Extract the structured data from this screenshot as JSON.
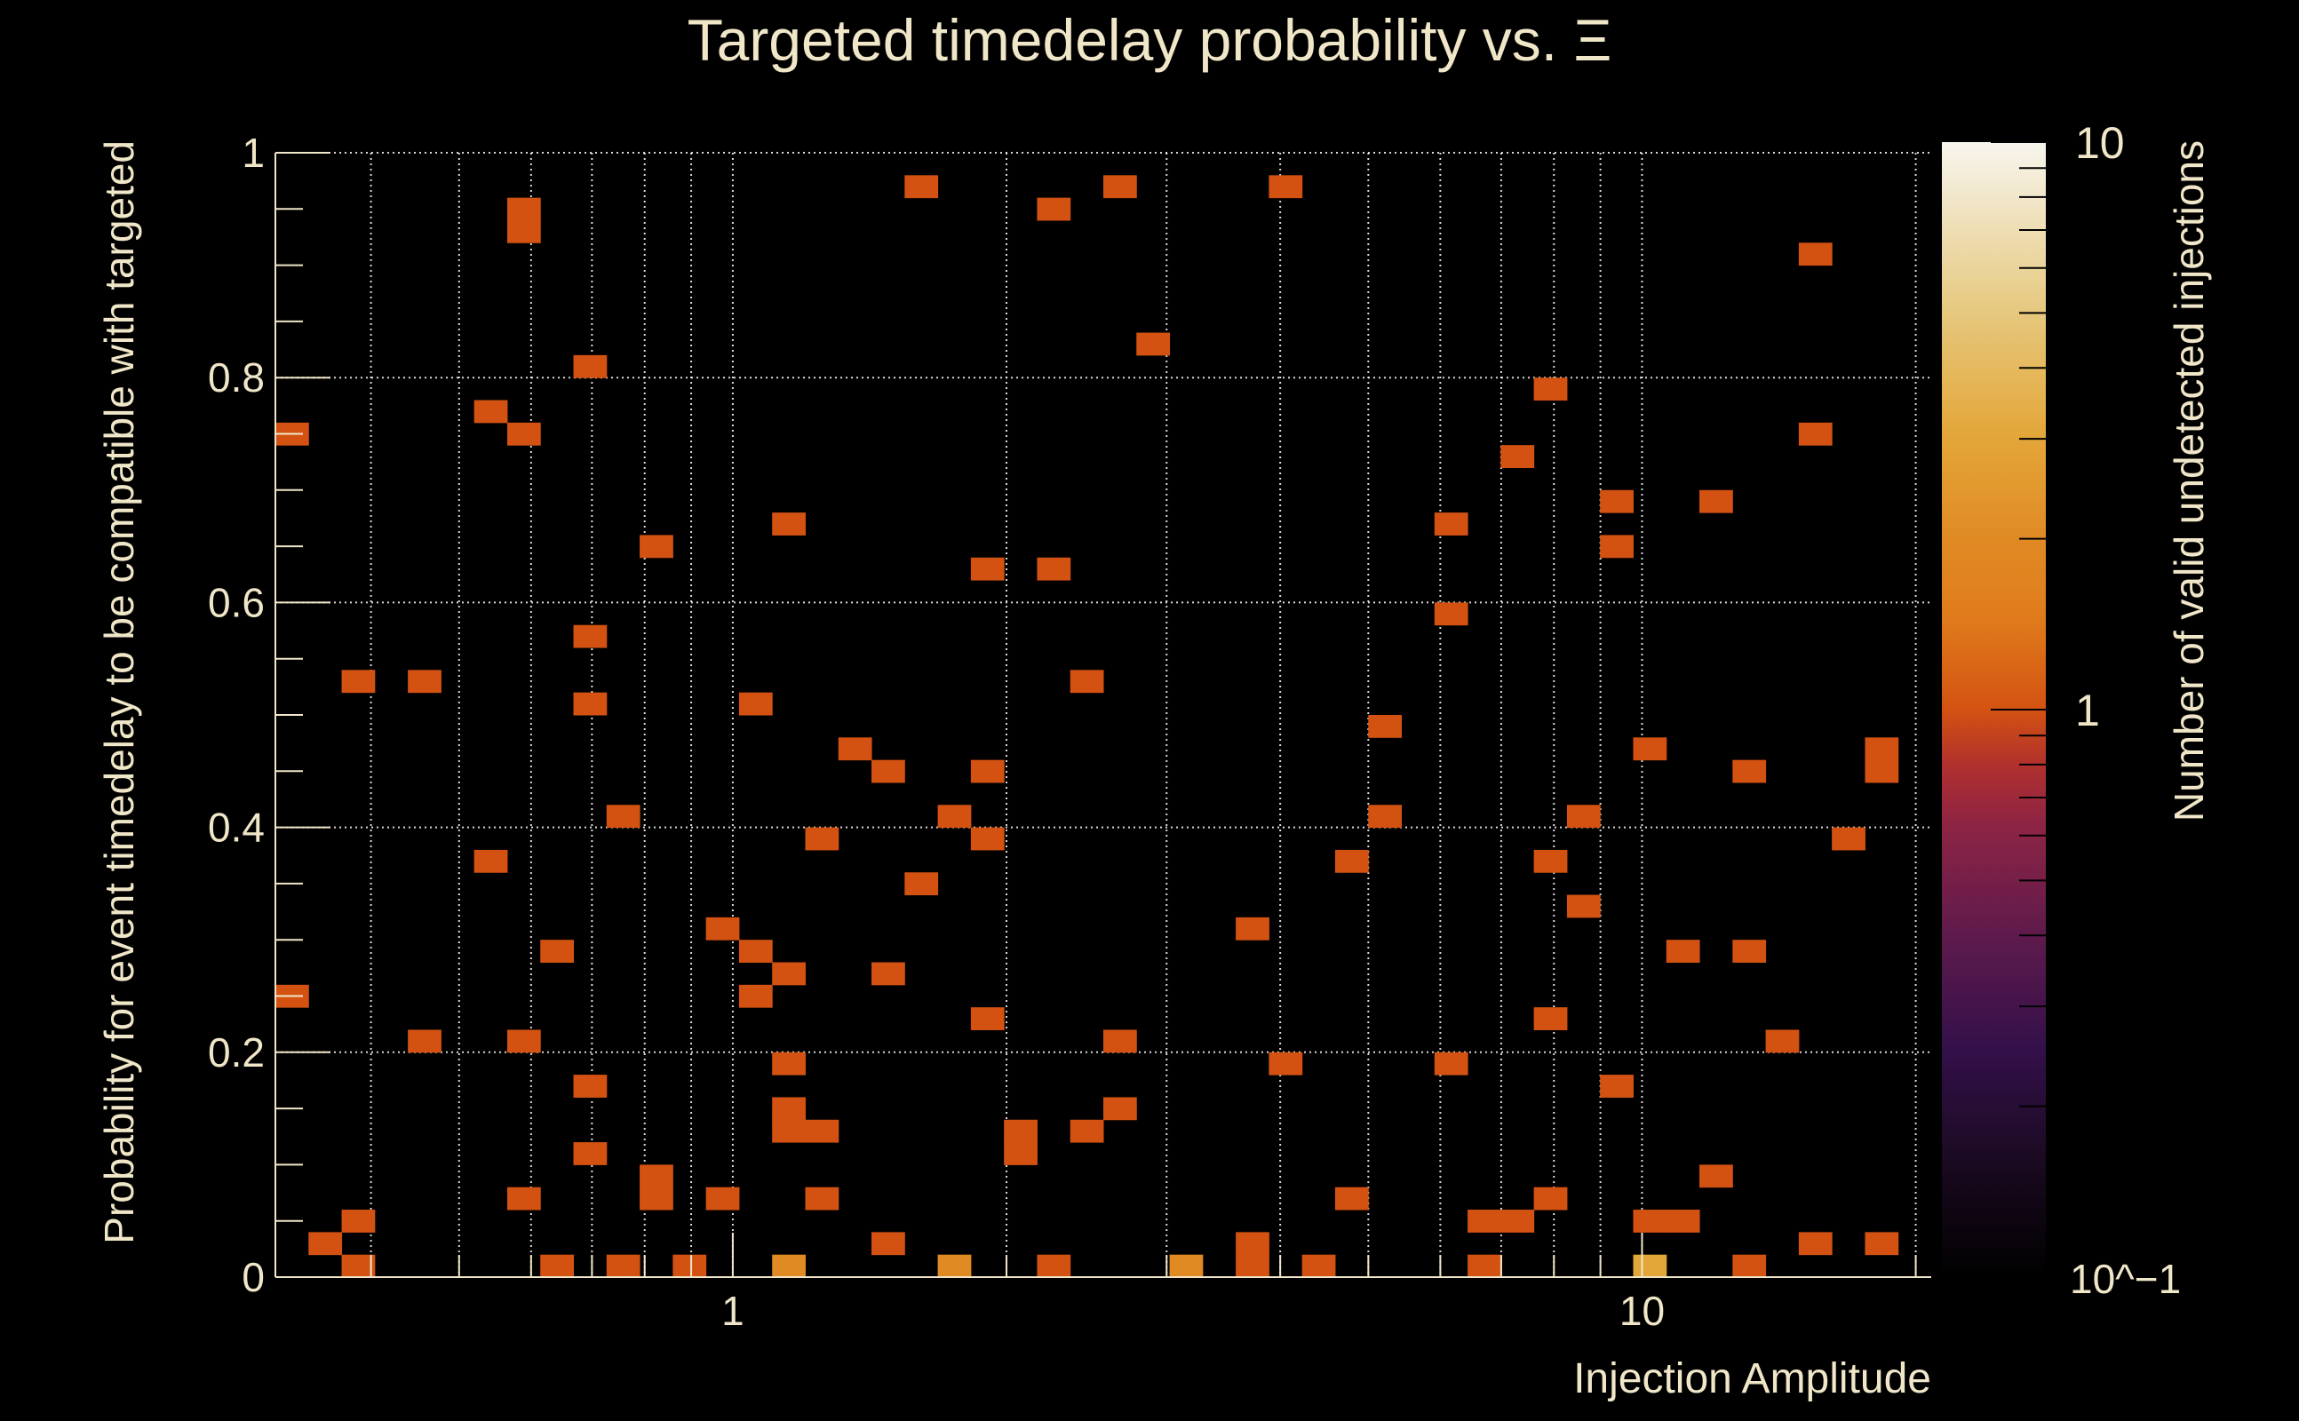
{
  "chart_data": {
    "type": "heatmap",
    "title": "Targeted timedelay probability vs.  Ξ",
    "xlabel": "Injection Amplitude",
    "ylabel": "Probability for event timedelay to be compatible with targeted",
    "zlabel": "Number of valid undetected injections",
    "x_scale": "log",
    "xlim": [
      0.314,
      20.8
    ],
    "ylim": [
      0,
      1
    ],
    "zlim": [
      0.1,
      10
    ],
    "z_scale": "log",
    "x_bins": 50,
    "y_bins": 50,
    "grid": true,
    "x_ticks": [
      {
        "value": 1,
        "label": "1"
      },
      {
        "value": 10,
        "label": "10"
      }
    ],
    "x_minor_ticks": [
      0.4,
      0.5,
      0.6,
      0.7,
      0.8,
      0.9,
      2,
      3,
      4,
      5,
      6,
      7,
      8,
      9,
      20
    ],
    "y_ticks": [
      {
        "value": 0,
        "label": "0"
      },
      {
        "value": 0.2,
        "label": "0.2"
      },
      {
        "value": 0.4,
        "label": "0.4"
      },
      {
        "value": 0.6,
        "label": "0.6"
      },
      {
        "value": 0.8,
        "label": "0.8"
      },
      {
        "value": 1,
        "label": "1"
      }
    ],
    "z_ticks": [
      {
        "value": 10,
        "label": "10"
      },
      {
        "value": 1,
        "label": "1"
      },
      {
        "value": 0.1,
        "label": "10^−1"
      }
    ],
    "cells_format": [
      "x_bin_index",
      "y_bin_index",
      "count"
    ],
    "cells": [
      [
        0,
        37,
        1
      ],
      [
        0,
        12,
        1
      ],
      [
        1,
        1,
        1
      ],
      [
        2,
        2,
        1
      ],
      [
        2,
        0,
        1
      ],
      [
        2,
        26,
        1
      ],
      [
        4,
        26,
        1
      ],
      [
        4,
        10,
        1
      ],
      [
        6,
        38,
        1
      ],
      [
        6,
        18,
        1
      ],
      [
        7,
        46,
        1
      ],
      [
        7,
        47,
        1
      ],
      [
        7,
        37,
        1
      ],
      [
        7,
        10,
        1
      ],
      [
        7,
        3,
        1
      ],
      [
        8,
        14,
        1
      ],
      [
        8,
        0,
        1
      ],
      [
        9,
        40,
        1
      ],
      [
        9,
        28,
        1
      ],
      [
        9,
        25,
        1
      ],
      [
        9,
        8,
        1
      ],
      [
        9,
        5,
        1
      ],
      [
        10,
        20,
        1
      ],
      [
        10,
        0,
        1
      ],
      [
        11,
        32,
        1
      ],
      [
        11,
        3,
        1
      ],
      [
        11,
        4,
        1
      ],
      [
        12,
        0,
        1
      ],
      [
        13,
        15,
        1
      ],
      [
        13,
        3,
        1
      ],
      [
        14,
        25,
        1
      ],
      [
        14,
        14,
        1
      ],
      [
        14,
        12,
        1
      ],
      [
        15,
        33,
        1
      ],
      [
        15,
        13,
        1
      ],
      [
        15,
        9,
        1
      ],
      [
        15,
        6,
        1
      ],
      [
        15,
        7,
        1
      ],
      [
        15,
        0,
        2
      ],
      [
        16,
        6,
        1
      ],
      [
        16,
        19,
        1
      ],
      [
        16,
        3,
        1
      ],
      [
        17,
        23,
        1
      ],
      [
        18,
        22,
        1
      ],
      [
        18,
        13,
        1
      ],
      [
        18,
        1,
        1
      ],
      [
        19,
        48,
        1
      ],
      [
        19,
        17,
        1
      ],
      [
        20,
        20,
        1
      ],
      [
        20,
        0,
        2
      ],
      [
        21,
        31,
        1
      ],
      [
        21,
        22,
        1
      ],
      [
        21,
        19,
        1
      ],
      [
        21,
        11,
        1
      ],
      [
        22,
        5,
        1
      ],
      [
        22,
        6,
        1
      ],
      [
        23,
        47,
        1
      ],
      [
        23,
        31,
        1
      ],
      [
        23,
        0,
        1
      ],
      [
        24,
        26,
        1
      ],
      [
        24,
        6,
        1
      ],
      [
        25,
        48,
        1
      ],
      [
        25,
        10,
        1
      ],
      [
        25,
        7,
        1
      ],
      [
        26,
        41,
        1
      ],
      [
        27,
        0,
        2
      ],
      [
        29,
        15,
        1
      ],
      [
        29,
        0,
        1
      ],
      [
        29,
        1,
        1
      ],
      [
        30,
        48,
        1
      ],
      [
        30,
        9,
        1
      ],
      [
        31,
        0,
        1
      ],
      [
        32,
        18,
        1
      ],
      [
        32,
        3,
        1
      ],
      [
        33,
        24,
        1
      ],
      [
        33,
        20,
        1
      ],
      [
        35,
        33,
        1
      ],
      [
        35,
        29,
        1
      ],
      [
        35,
        9,
        1
      ],
      [
        36,
        0,
        1
      ],
      [
        36,
        2,
        1
      ],
      [
        37,
        2,
        1
      ],
      [
        37,
        36,
        1
      ],
      [
        38,
        39,
        1
      ],
      [
        38,
        18,
        1
      ],
      [
        38,
        11,
        1
      ],
      [
        38,
        3,
        1
      ],
      [
        39,
        20,
        1
      ],
      [
        39,
        16,
        1
      ],
      [
        40,
        34,
        1
      ],
      [
        40,
        32,
        1
      ],
      [
        40,
        8,
        1
      ],
      [
        41,
        23,
        1
      ],
      [
        41,
        2,
        1
      ],
      [
        42,
        2,
        1
      ],
      [
        41,
        0,
        3
      ],
      [
        42,
        14,
        1
      ],
      [
        43,
        34,
        1
      ],
      [
        43,
        4,
        1
      ],
      [
        44,
        22,
        1
      ],
      [
        44,
        14,
        1
      ],
      [
        44,
        0,
        1
      ],
      [
        45,
        10,
        1
      ],
      [
        46,
        45,
        1
      ],
      [
        46,
        37,
        1
      ],
      [
        46,
        1,
        1
      ],
      [
        47,
        19,
        1
      ],
      [
        48,
        22,
        1
      ],
      [
        48,
        23,
        1
      ],
      [
        48,
        1,
        1
      ]
    ],
    "colormap_stops": [
      [
        0,
        "#000000"
      ],
      [
        0.1,
        "#1a0a20"
      ],
      [
        0.2,
        "#33104a"
      ],
      [
        0.3,
        "#5e1a4c"
      ],
      [
        0.4,
        "#8e2444"
      ],
      [
        0.45,
        "#b0302e"
      ],
      [
        0.5,
        "#d35212"
      ],
      [
        0.58,
        "#e07c1c"
      ],
      [
        0.65,
        "#e08a24"
      ],
      [
        0.74,
        "#e3a638"
      ],
      [
        0.85,
        "#e6c87e"
      ],
      [
        1,
        "#f7f5ee"
      ]
    ],
    "text_color": "#f0e6c8",
    "background": "#000000"
  }
}
